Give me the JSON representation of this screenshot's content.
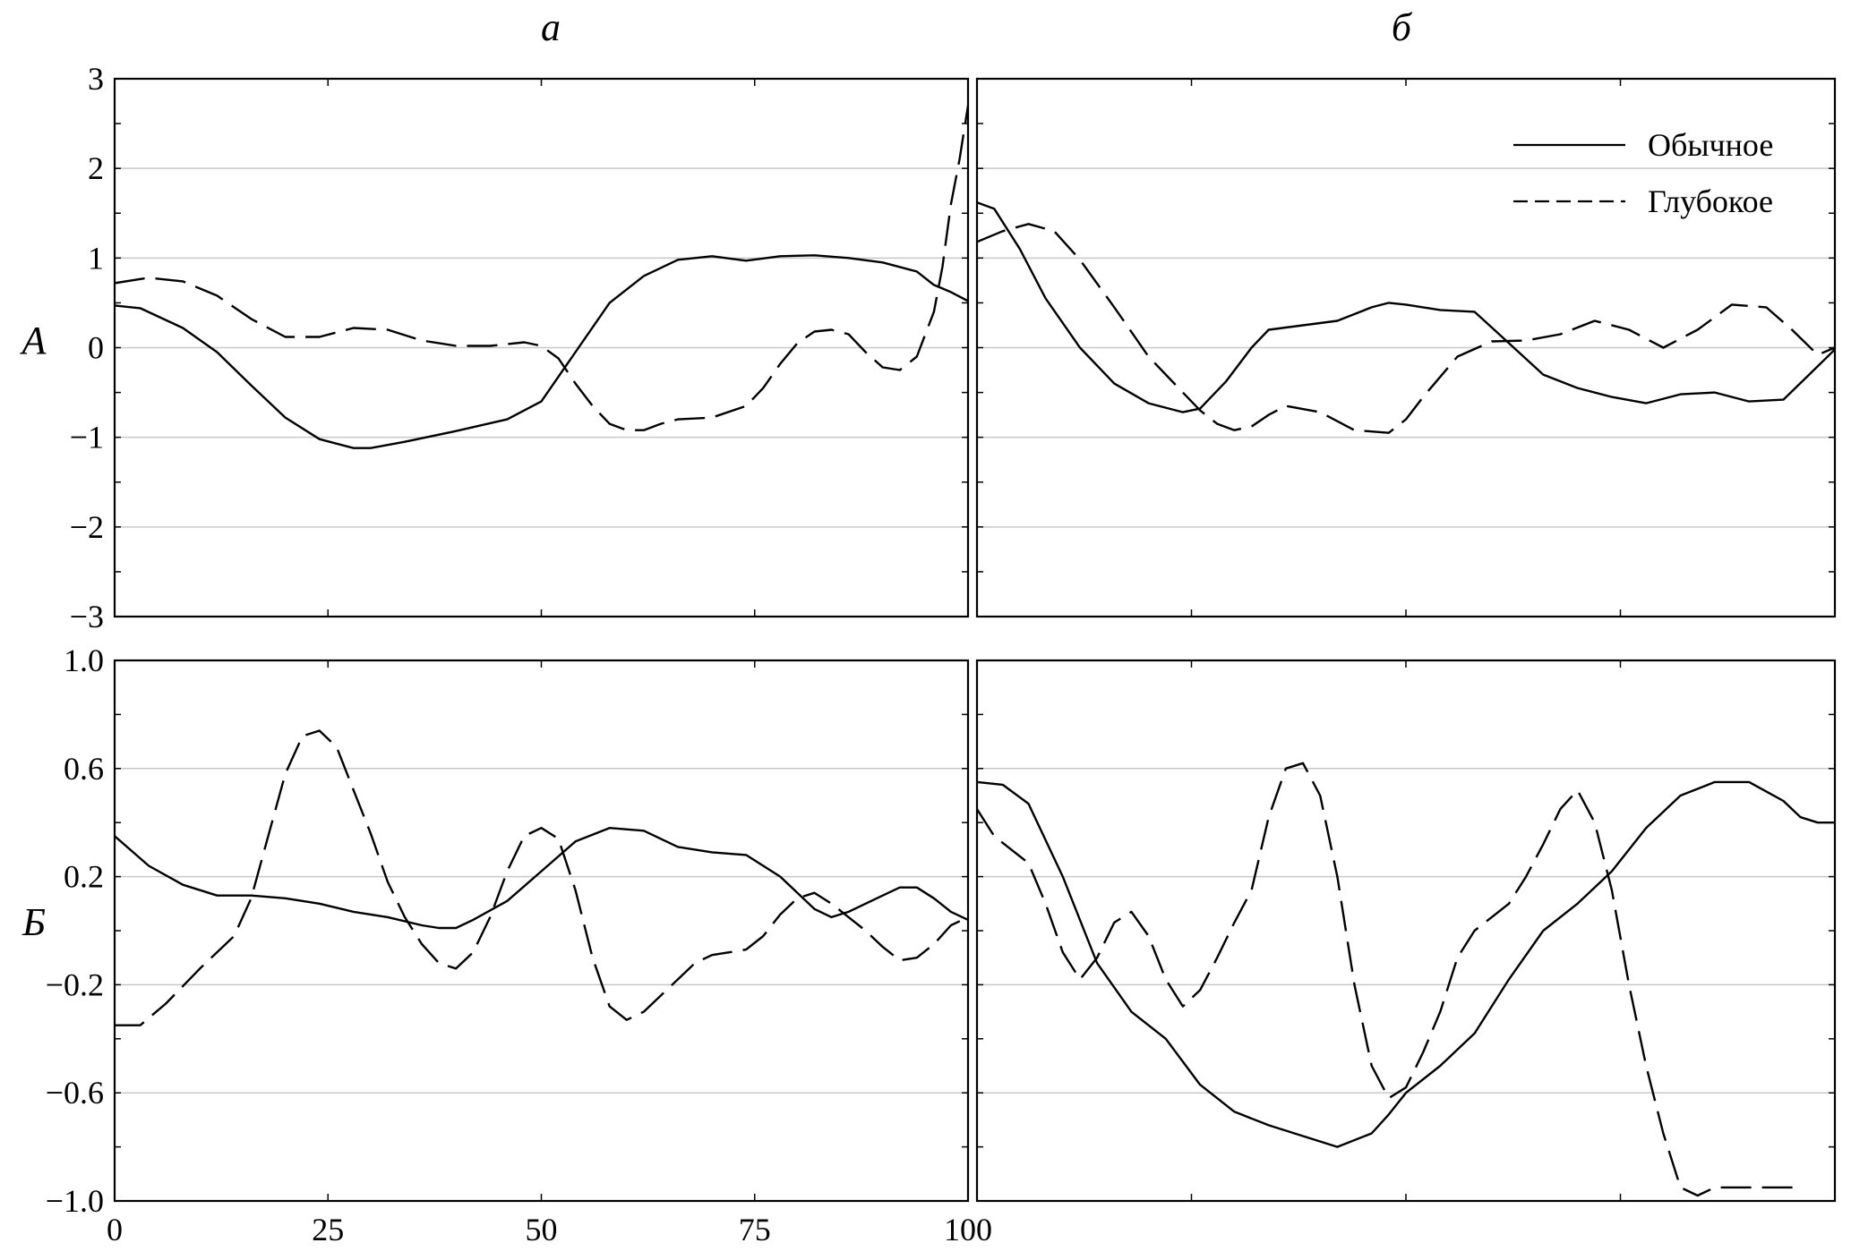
{
  "figure": {
    "column_labels": [
      "а",
      "б"
    ],
    "row_labels": [
      "А",
      "Б"
    ]
  },
  "legend": {
    "entries": [
      {
        "label": "Обычное",
        "style": "solid"
      },
      {
        "label": "Глубокое",
        "style": "dashed"
      }
    ],
    "placement": "top-right of panel А-б"
  },
  "colors": {
    "line": "#000000",
    "grid": "#c8c8c8",
    "frame": "#000000",
    "background": "#ffffff"
  },
  "chart_data": [
    {
      "id": "A-a",
      "type": "line",
      "row": "А",
      "column": "а",
      "xlim": [
        0,
        100
      ],
      "ylim": [
        -3,
        3
      ],
      "xticks": [
        "0",
        "25",
        "50",
        "75",
        "100"
      ],
      "yticks": [
        "3",
        "2",
        "1",
        "0",
        "−1",
        "−2",
        "−3"
      ],
      "ytick_values": [
        3,
        2,
        1,
        0,
        -1,
        -2,
        -3
      ],
      "grid": "horizontal",
      "series": [
        {
          "name": "Обычное",
          "style": "solid",
          "x": [
            0,
            3,
            8,
            12,
            16,
            20,
            24,
            28,
            30,
            34,
            40,
            46,
            50,
            54,
            58,
            62,
            66,
            70,
            74,
            78,
            82,
            86,
            90,
            94,
            96,
            98,
            100
          ],
          "y": [
            0.47,
            0.44,
            0.22,
            -0.05,
            -0.42,
            -0.78,
            -1.02,
            -1.12,
            -1.12,
            -1.05,
            -0.93,
            -0.8,
            -0.6,
            -0.05,
            0.5,
            0.8,
            0.98,
            1.02,
            0.97,
            1.02,
            1.03,
            1.0,
            0.95,
            0.85,
            0.7,
            0.62,
            0.52
          ]
        },
        {
          "name": "Глубокое",
          "style": "dashed",
          "x": [
            0,
            4,
            8,
            12,
            16,
            20,
            24,
            28,
            32,
            36,
            40,
            44,
            48,
            50,
            52,
            54,
            56,
            58,
            60,
            62,
            64,
            66,
            70,
            74,
            76,
            78,
            80,
            82,
            84,
            86,
            88,
            90,
            92,
            94,
            96,
            97,
            98,
            99,
            100
          ],
          "y": [
            0.72,
            0.78,
            0.74,
            0.58,
            0.32,
            0.12,
            0.12,
            0.22,
            0.2,
            0.08,
            0.02,
            0.02,
            0.06,
            0.02,
            -0.12,
            -0.4,
            -0.65,
            -0.85,
            -0.92,
            -0.92,
            -0.85,
            -0.8,
            -0.78,
            -0.65,
            -0.45,
            -0.18,
            0.05,
            0.18,
            0.2,
            0.15,
            -0.05,
            -0.22,
            -0.25,
            -0.1,
            0.4,
            0.9,
            1.6,
            2.1,
            2.7
          ]
        }
      ]
    },
    {
      "id": "A-b",
      "type": "line",
      "row": "А",
      "column": "б",
      "xlim": [
        0,
        100
      ],
      "ylim": [
        -3,
        3
      ],
      "xticks": [],
      "yticks": [],
      "grid": "horizontal",
      "series": [
        {
          "name": "Обычное",
          "style": "solid",
          "x": [
            0,
            2,
            5,
            8,
            12,
            16,
            20,
            24,
            26,
            29,
            32,
            34,
            38,
            42,
            46,
            48,
            50,
            54,
            58,
            62,
            66,
            70,
            74,
            78,
            82,
            86,
            90,
            94,
            97,
            100
          ],
          "y": [
            1.62,
            1.55,
            1.1,
            0.55,
            0.0,
            -0.4,
            -0.62,
            -0.72,
            -0.68,
            -0.38,
            0.0,
            0.2,
            0.25,
            0.3,
            0.45,
            0.5,
            0.48,
            0.42,
            0.4,
            0.05,
            -0.3,
            -0.45,
            -0.55,
            -0.62,
            -0.52,
            -0.5,
            -0.6,
            -0.58,
            -0.3,
            -0.02
          ]
        },
        {
          "name": "Глубокое",
          "style": "dashed",
          "x": [
            0,
            3,
            6,
            9,
            12,
            16,
            20,
            24,
            26,
            28,
            30,
            32,
            34,
            36,
            40,
            44,
            48,
            50,
            52,
            56,
            60,
            64,
            68,
            72,
            76,
            80,
            84,
            88,
            92,
            95,
            98,
            100
          ],
          "y": [
            1.18,
            1.3,
            1.38,
            1.3,
            0.98,
            0.45,
            -0.1,
            -0.5,
            -0.7,
            -0.85,
            -0.92,
            -0.88,
            -0.75,
            -0.65,
            -0.72,
            -0.92,
            -0.95,
            -0.8,
            -0.55,
            -0.1,
            0.07,
            0.08,
            0.15,
            0.3,
            0.2,
            0.0,
            0.2,
            0.48,
            0.45,
            0.2,
            -0.08,
            0.0
          ]
        }
      ]
    },
    {
      "id": "B-a",
      "type": "line",
      "row": "Б",
      "column": "а",
      "xlim": [
        0,
        100
      ],
      "ylim": [
        -1.0,
        1.0
      ],
      "xticks": [
        "0",
        "25",
        "50",
        "75",
        "100"
      ],
      "yticks": [
        "1.0",
        "0.6",
        "0.2",
        "−0.2",
        "−0.6",
        "−1.0"
      ],
      "ytick_values": [
        1.0,
        0.6,
        0.2,
        -0.2,
        -0.6,
        -1.0
      ],
      "grid": "horizontal",
      "series": [
        {
          "name": "Обычное",
          "style": "solid",
          "x": [
            0,
            4,
            8,
            12,
            16,
            20,
            24,
            28,
            32,
            36,
            38,
            40,
            42,
            46,
            50,
            54,
            58,
            62,
            66,
            70,
            74,
            78,
            82,
            84,
            86,
            88,
            90,
            92,
            94,
            96,
            98,
            100
          ],
          "y": [
            0.35,
            0.24,
            0.17,
            0.13,
            0.13,
            0.12,
            0.1,
            0.07,
            0.05,
            0.02,
            0.01,
            0.01,
            0.04,
            0.11,
            0.22,
            0.33,
            0.38,
            0.37,
            0.31,
            0.29,
            0.28,
            0.2,
            0.08,
            0.05,
            0.07,
            0.1,
            0.13,
            0.16,
            0.16,
            0.12,
            0.07,
            0.04
          ]
        },
        {
          "name": "Глубокое",
          "style": "dashed",
          "x": [
            0,
            3,
            6,
            10,
            14,
            16,
            18,
            20,
            22,
            24,
            26,
            28,
            30,
            32,
            34,
            36,
            38,
            40,
            42,
            44,
            46,
            48,
            50,
            52,
            54,
            56,
            58,
            60,
            62,
            64,
            66,
            68,
            70,
            72,
            74,
            76,
            78,
            80,
            82,
            84,
            86,
            88,
            90,
            92,
            94,
            96,
            98,
            100
          ],
          "y": [
            -0.35,
            -0.35,
            -0.27,
            -0.14,
            -0.02,
            0.12,
            0.35,
            0.58,
            0.72,
            0.74,
            0.68,
            0.52,
            0.36,
            0.18,
            0.05,
            -0.05,
            -0.12,
            -0.14,
            -0.08,
            0.05,
            0.22,
            0.35,
            0.38,
            0.34,
            0.15,
            -0.1,
            -0.28,
            -0.33,
            -0.3,
            -0.24,
            -0.18,
            -0.12,
            -0.09,
            -0.08,
            -0.07,
            -0.02,
            0.06,
            0.12,
            0.14,
            0.1,
            0.05,
            0.0,
            -0.06,
            -0.11,
            -0.1,
            -0.05,
            0.02,
            0.05
          ]
        }
      ]
    },
    {
      "id": "B-b",
      "type": "line",
      "row": "Б",
      "column": "б",
      "xlim": [
        0,
        100
      ],
      "ylim": [
        -1.0,
        1.0
      ],
      "xticks": [],
      "yticks": [],
      "grid": "horizontal",
      "series": [
        {
          "name": "Обычное",
          "style": "solid",
          "x": [
            0,
            3,
            6,
            10,
            14,
            18,
            22,
            26,
            30,
            34,
            38,
            42,
            46,
            48,
            50,
            54,
            58,
            62,
            66,
            70,
            74,
            78,
            82,
            86,
            90,
            94,
            96,
            98,
            100
          ],
          "y": [
            0.55,
            0.54,
            0.47,
            0.2,
            -0.12,
            -0.3,
            -0.4,
            -0.57,
            -0.67,
            -0.72,
            -0.76,
            -0.8,
            -0.75,
            -0.68,
            -0.6,
            -0.5,
            -0.38,
            -0.18,
            0.0,
            0.1,
            0.22,
            0.38,
            0.5,
            0.55,
            0.55,
            0.48,
            0.42,
            0.4,
            0.4
          ]
        },
        {
          "name": "Глубокое",
          "style": "dashed",
          "x": [
            0,
            2,
            4,
            6,
            8,
            10,
            12,
            14,
            16,
            18,
            20,
            22,
            24,
            26,
            28,
            30,
            32,
            34,
            36,
            38,
            40,
            42,
            44,
            46,
            48,
            50,
            52,
            54,
            56,
            58,
            60,
            62,
            64,
            66,
            68,
            70,
            72,
            74,
            76,
            78,
            80,
            82,
            84,
            86,
            88,
            90,
            92,
            94,
            96
          ],
          "y": [
            0.45,
            0.35,
            0.3,
            0.25,
            0.1,
            -0.08,
            -0.18,
            -0.1,
            0.03,
            0.07,
            -0.02,
            -0.18,
            -0.28,
            -0.22,
            -0.1,
            0.03,
            0.15,
            0.42,
            0.6,
            0.62,
            0.5,
            0.2,
            -0.2,
            -0.5,
            -0.62,
            -0.58,
            -0.45,
            -0.3,
            -0.1,
            0.0,
            0.05,
            0.1,
            0.2,
            0.32,
            0.45,
            0.52,
            0.4,
            0.15,
            -0.2,
            -0.5,
            -0.75,
            -0.95,
            -0.98,
            -0.95,
            -0.95,
            -0.95,
            -0.95,
            -0.95,
            -0.95
          ]
        }
      ]
    }
  ]
}
